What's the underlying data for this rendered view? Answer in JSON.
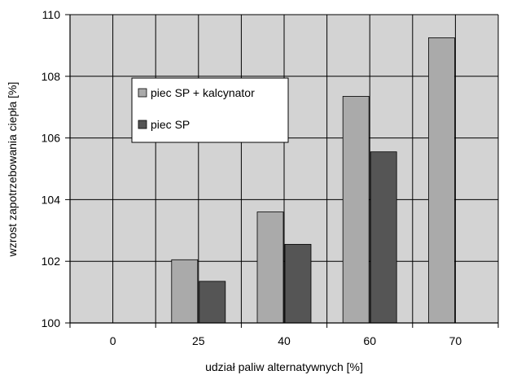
{
  "chart_data": {
    "type": "bar",
    "title": "",
    "xlabel": "udział paliw alternatywnych [%]",
    "ylabel": "wzrost zapotrzebowania ciepła [%]",
    "ylim": [
      100,
      110
    ],
    "yticks": [
      "100",
      "102",
      "104",
      "106",
      "108",
      "110"
    ],
    "categories": [
      "0",
      "25",
      "40",
      "60",
      "70"
    ],
    "grid": true,
    "legend_position": "upper-left inside plot",
    "series": [
      {
        "name": "piec SP + kalcynator",
        "color": "#aaaaaa",
        "values": [
          null,
          102.05,
          103.6,
          107.35,
          109.25
        ]
      },
      {
        "name": "piec SP",
        "color": "#555555",
        "values": [
          null,
          101.35,
          102.55,
          105.55,
          null
        ]
      }
    ],
    "plot_background": "#d3d3d3"
  }
}
